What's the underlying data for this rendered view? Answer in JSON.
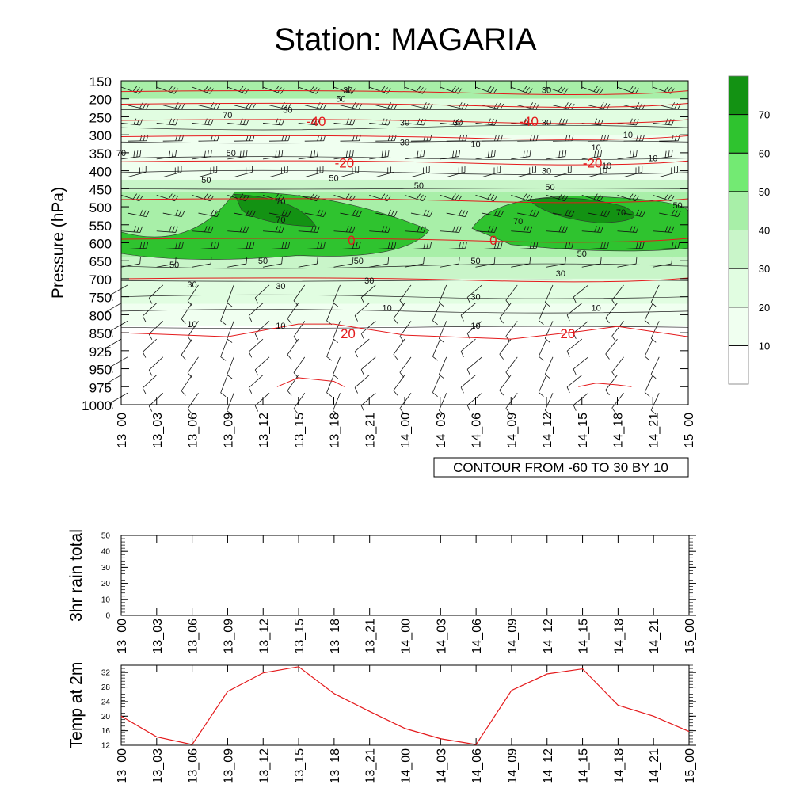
{
  "title": "Station: MAGARIA",
  "chart_data": [
    {
      "type": "heatmap",
      "title": "Station: MAGARIA",
      "ylabel": "Pressure (hPa)",
      "pressure_levels": [
        "150",
        "200",
        "250",
        "300",
        "350",
        "400",
        "450",
        "500",
        "550",
        "600",
        "650",
        "700",
        "750",
        "800",
        "850",
        "925",
        "950",
        "975",
        "1000"
      ],
      "time_labels": [
        "13_00",
        "13_03",
        "13_06",
        "13_09",
        "13_12",
        "13_15",
        "13_18",
        "13_21",
        "14_00",
        "14_03",
        "14_06",
        "14_09",
        "14_12",
        "14_15",
        "14_18",
        "14_21",
        "15_00"
      ],
      "colorbar_labels": [
        "10",
        "20",
        "30",
        "40",
        "50",
        "60",
        "70"
      ],
      "colorbar_colors": [
        "#ffffff",
        "#f0fff0",
        "#e1fde1",
        "#c9f5c9",
        "#a8efa8",
        "#73ea73",
        "#2fc32f",
        "#139213"
      ],
      "shading_description": "wind speed; maxima ~70 near 500-550 hPa around 13_12-13_15 and 14_12-14_15",
      "contour_label_note": "CONTOUR FROM -60 TO 30 BY 10",
      "temperature_contours": [
        {
          "label": "-40",
          "level_hpa": 260
        },
        {
          "label": "-20",
          "level_hpa": 375
        },
        {
          "label": "0",
          "level_hpa": 590
        },
        {
          "label": "20",
          "level_hpa": 850
        }
      ],
      "wind_speed_contour_labels": [
        "10",
        "30",
        "50",
        "70"
      ]
    },
    {
      "type": "line",
      "ylabel": "3hr rain total",
      "x": [
        "13_00",
        "13_03",
        "13_06",
        "13_09",
        "13_12",
        "13_15",
        "13_18",
        "13_21",
        "14_00",
        "14_03",
        "14_06",
        "14_09",
        "14_12",
        "14_15",
        "14_18",
        "14_21",
        "15_00"
      ],
      "values": [
        0,
        0,
        0,
        0,
        0,
        0,
        0,
        0,
        0,
        0,
        0,
        0,
        0,
        0,
        0,
        0,
        0
      ],
      "ylim": [
        0,
        50
      ],
      "yticks": [
        "0",
        "10",
        "20",
        "30",
        "40",
        "50"
      ]
    },
    {
      "type": "line",
      "ylabel": "Temp at 2m",
      "x": [
        "13_00",
        "13_03",
        "13_06",
        "13_09",
        "13_12",
        "13_15",
        "13_18",
        "13_21",
        "14_00",
        "14_03",
        "14_06",
        "14_09",
        "14_12",
        "14_15",
        "14_18",
        "14_21",
        "15_00"
      ],
      "values": [
        20.0,
        14.3,
        12.2,
        26.8,
        31.9,
        33.6,
        26.2,
        21.3,
        16.6,
        13.8,
        12.2,
        27.1,
        31.6,
        33.0,
        23.0,
        20.0,
        15.8
      ],
      "ylim": [
        12,
        34
      ],
      "yticks": [
        "12",
        "16",
        "20",
        "24",
        "28",
        "32"
      ],
      "line_color": "#e41a1c"
    }
  ]
}
